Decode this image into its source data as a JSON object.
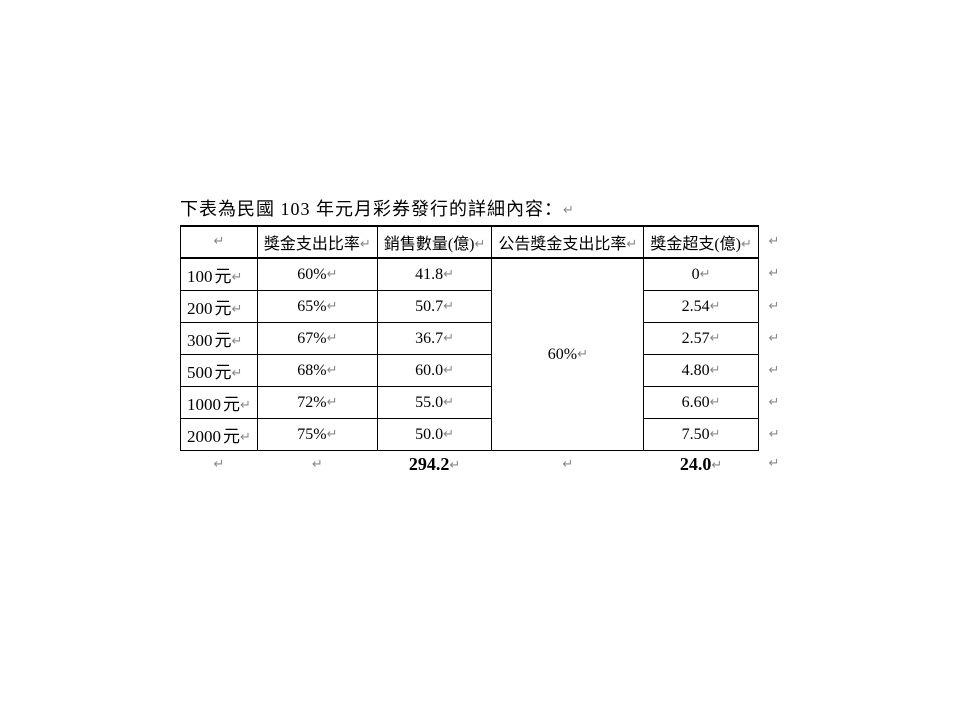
{
  "title": {
    "pre": "下表為民國 ",
    "num": "103",
    "post": " 年元月彩券發行的詳細內容：",
    "mark": "↵"
  },
  "marks": {
    "pm": "↵"
  },
  "table": {
    "headers": {
      "blank": "",
      "payout_ratio": "獎金支出比率",
      "sales": "銷售數量(億)",
      "announced_ratio": "公告獎金支出比率",
      "overspend": "獎金超支(億)"
    },
    "merged_announced": "60%",
    "rows": [
      {
        "denom_num": "100",
        "denom_unit": "元",
        "ratio": "60%",
        "sales": "41.8",
        "over": "0"
      },
      {
        "denom_num": "200",
        "denom_unit": "元",
        "ratio": "65%",
        "sales": "50.7",
        "over": "2.54"
      },
      {
        "denom_num": "300",
        "denom_unit": "元",
        "ratio": "67%",
        "sales": "36.7",
        "over": "2.57"
      },
      {
        "denom_num": "500",
        "denom_unit": "元",
        "ratio": "68%",
        "sales": "60.0",
        "over": "4.80"
      },
      {
        "denom_num": "1000",
        "denom_unit": "元",
        "ratio": "72%",
        "sales": "55.0",
        "over": "6.60"
      },
      {
        "denom_num": "2000",
        "denom_unit": "元",
        "ratio": "75%",
        "sales": "50.0",
        "over": "7.50"
      }
    ],
    "totals": {
      "sales": "294.2",
      "over": "24.0"
    }
  },
  "style": {
    "border_color": "#000000",
    "background": "#ffffff",
    "mark_color": "#888888",
    "body_font": "PMingLiU",
    "number_font": "Times New Roman",
    "font_size_body": 16,
    "font_size_title": 18
  }
}
